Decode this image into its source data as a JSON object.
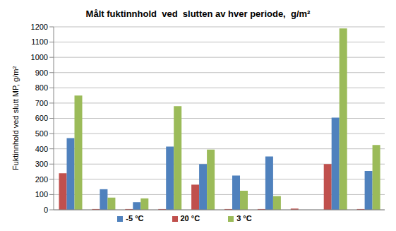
{
  "chart_data": {
    "type": "bar",
    "title": "Målt fuktinnhold  ved  slutten av hver periode,  g/m²",
    "y_label": "Fuktinnhold  ved slutt MP, g/m²",
    "categories": [
      null,
      null,
      null,
      null,
      null,
      null,
      null,
      null,
      null,
      null
    ],
    "series": [
      {
        "name": "20 °C",
        "color": "#c0504d",
        "values": [
          240,
          5,
          5,
          5,
          165,
          5,
          5,
          8,
          300,
          5
        ]
      },
      {
        "name": "-5 °C",
        "color": "#4f81bd",
        "values": [
          470,
          135,
          50,
          415,
          300,
          225,
          350,
          0,
          605,
          255
        ]
      },
      {
        "name": "3 °C",
        "color": "#9bbb59",
        "values": [
          750,
          80,
          75,
          680,
          395,
          125,
          90,
          0,
          1190,
          425
        ]
      }
    ],
    "ylim": [
      0,
      1200
    ],
    "yticks": [
      0,
      100,
      200,
      300,
      400,
      500,
      600,
      700,
      800,
      900,
      1000,
      1100,
      1200
    ],
    "grid": true,
    "legend": "bottom",
    "tick_labels": "y"
  }
}
